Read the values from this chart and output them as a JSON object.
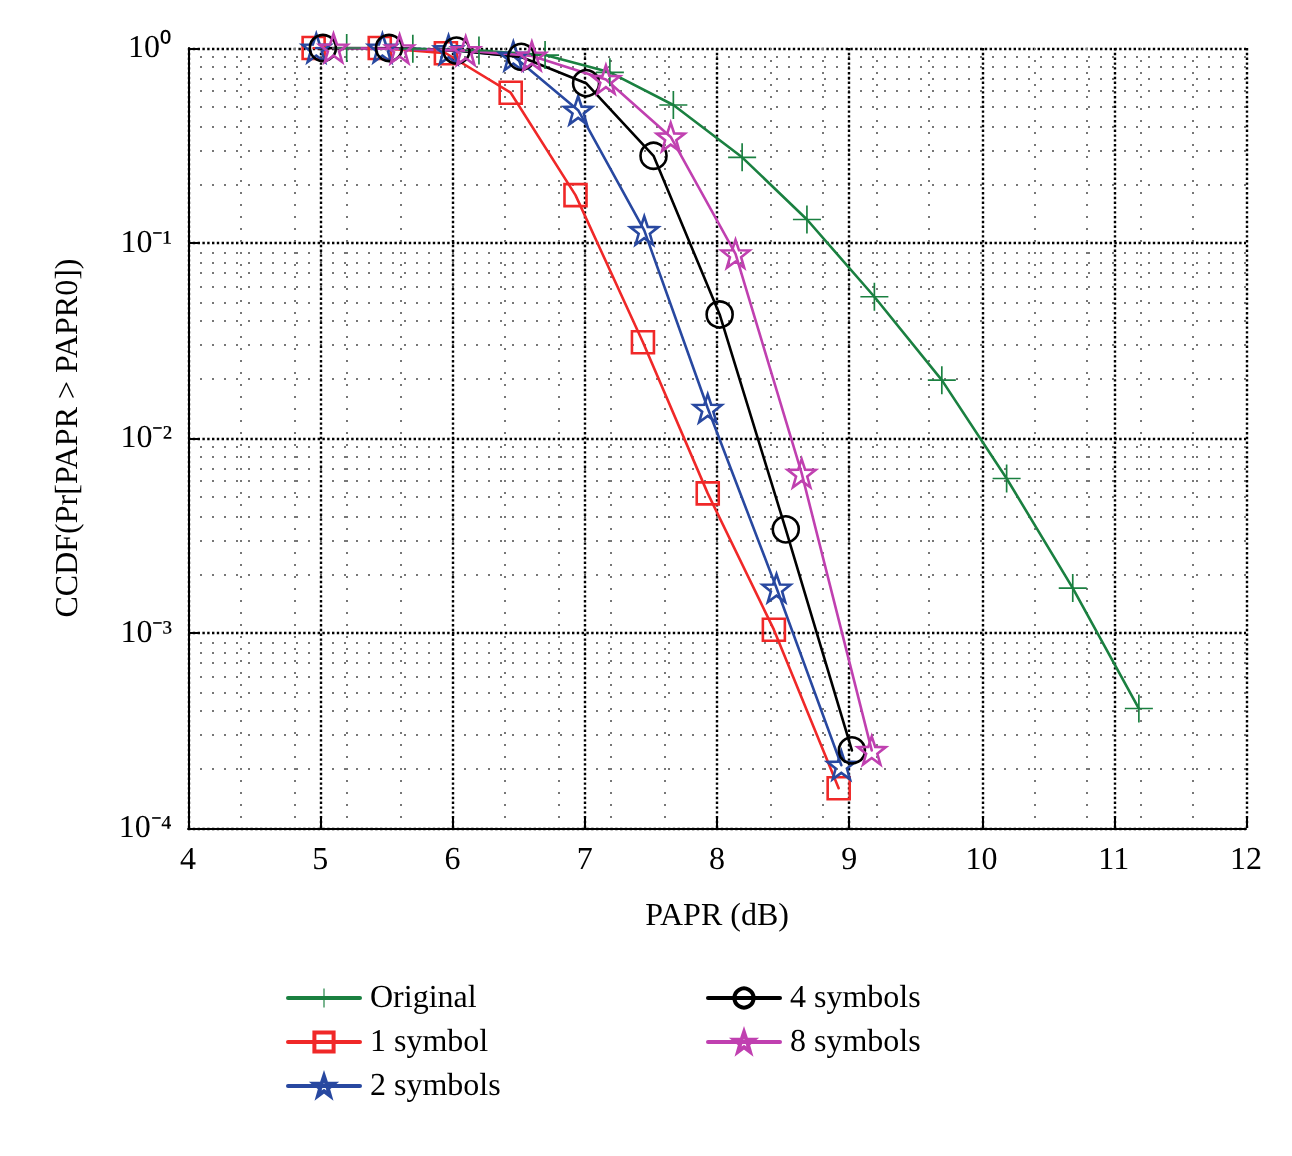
{
  "chart_data": {
    "type": "line",
    "xlabel": "PAPR (dB)",
    "ylabel": "CCDF(Pr[PAPR > PAPR0])",
    "log": "y",
    "grid": true,
    "legend": "bottom",
    "line_style": "solid",
    "xlim": [
      4,
      12
    ],
    "xticks": [
      4,
      5,
      6,
      7,
      8,
      9,
      10,
      11,
      12
    ],
    "ylim": [
      0.0001,
      1
    ],
    "yticks": [
      {
        "value": 0.0001,
        "label": "10⁻⁴"
      },
      {
        "value": 0.001,
        "label": "10⁻³"
      },
      {
        "value": 0.01,
        "label": "10⁻²"
      },
      {
        "value": 0.1,
        "label": "10⁻¹"
      },
      {
        "value": 1,
        "label": "10⁰"
      }
    ],
    "series": [
      {
        "name": "Original",
        "color": "#1a8040",
        "marker": "cross",
        "x": [
          5.2,
          5.7,
          6.2,
          6.7,
          7.19,
          7.67,
          8.19,
          8.68,
          9.19,
          9.7,
          10.19,
          10.69,
          11.19
        ],
        "values": [
          1,
          0.99,
          0.97,
          0.92,
          0.75,
          0.51,
          0.275,
          0.132,
          0.053,
          0.0198,
          0.0062,
          0.0017,
          0.00041
        ]
      },
      {
        "name": "1 symbol",
        "color": "#f02828",
        "marker": "square",
        "x": [
          4.95,
          5.45,
          5.95,
          6.44,
          6.93,
          7.44,
          7.93,
          8.43,
          8.92
        ],
        "values": [
          1,
          1,
          0.94,
          0.59,
          0.176,
          0.031,
          0.0052,
          0.00104,
          0.00016
        ]
      },
      {
        "name": "2 symbols",
        "color": "#2848a0",
        "marker": "star",
        "x": [
          4.97,
          5.47,
          5.97,
          6.46,
          6.95,
          7.45,
          7.93,
          8.45,
          8.94
        ],
        "values": [
          1,
          1,
          0.98,
          0.91,
          0.48,
          0.116,
          0.0142,
          0.0017,
          0.00021
        ]
      },
      {
        "name": "4 symbols",
        "color": "#000000",
        "marker": "circle",
        "x": [
          5.02,
          5.52,
          6.03,
          6.52,
          7.01,
          7.52,
          8.02,
          8.52,
          9.02
        ],
        "values": [
          1,
          1,
          0.97,
          0.9,
          0.66,
          0.28,
          0.043,
          0.0034,
          0.00025
        ]
      },
      {
        "name": "8 symbols",
        "color": "#c040b0",
        "marker": "star",
        "x": [
          5.1,
          5.6,
          6.1,
          6.6,
          7.16,
          7.65,
          8.14,
          8.64,
          9.17
        ],
        "values": [
          1,
          0.99,
          0.97,
          0.91,
          0.69,
          0.35,
          0.088,
          0.0066,
          0.00025
        ]
      }
    ]
  }
}
